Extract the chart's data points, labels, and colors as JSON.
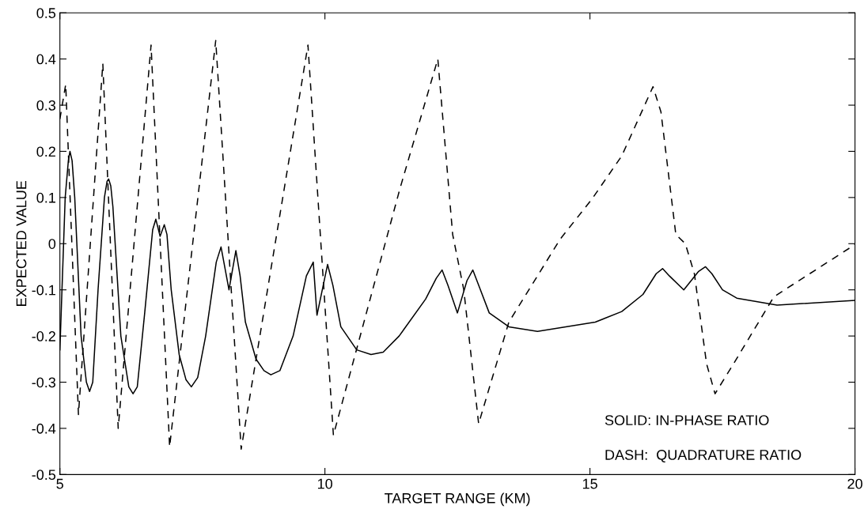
{
  "chart_data": {
    "type": "line",
    "xlabel": "TARGET RANGE (KM)",
    "ylabel": "EXPECTED VALUE",
    "xlim": [
      5,
      20
    ],
    "ylim": [
      -0.5,
      0.5
    ],
    "xticks": [
      5,
      10,
      15,
      20
    ],
    "yticks": [
      -0.5,
      -0.4,
      -0.3,
      -0.2,
      -0.1,
      0,
      0.1,
      0.2,
      0.3,
      0.4,
      0.5
    ],
    "grid": false,
    "legend": false,
    "annotations": [
      "SOLID: IN-PHASE RATIO",
      "DASH:  QUADRATURE RATIO"
    ],
    "series": [
      {
        "color": "#000000",
        "line_style": "solid",
        "x": [
          5,
          5.1,
          5.16,
          5.19,
          5.23,
          5.28,
          5.4,
          5.5,
          5.56,
          5.62,
          5.72,
          5.84,
          5.89,
          5.92,
          5.96,
          6.0,
          6.15,
          6.3,
          6.38,
          6.46,
          6.6,
          6.75,
          6.81,
          6.89,
          6.97,
          7.02,
          7.1,
          7.25,
          7.38,
          7.48,
          7.6,
          7.75,
          7.95,
          8.04,
          8.19,
          8.32,
          8.4,
          8.5,
          8.7,
          8.85,
          8.98,
          9.15,
          9.4,
          9.65,
          9.78,
          9.85,
          10.05,
          10.15,
          10.3,
          10.6,
          10.87,
          11.1,
          11.4,
          11.9,
          12.1,
          12.21,
          12.32,
          12.5,
          12.68,
          12.79,
          12.9,
          13.1,
          13.47,
          14.01,
          15.1,
          15.6,
          16.0,
          16.25,
          16.37,
          16.5,
          16.77,
          17.05,
          17.18,
          17.3,
          17.5,
          17.77,
          18.53,
          20
        ],
        "values": [
          -0.23,
          0.1,
          0.18,
          0.2,
          0.18,
          0.1,
          -0.2,
          -0.3,
          -0.32,
          -0.3,
          -0.1,
          0.1,
          0.135,
          0.14,
          0.125,
          0.08,
          -0.2,
          -0.31,
          -0.325,
          -0.31,
          -0.15,
          0.03,
          0.053,
          0.016,
          0.041,
          0.02,
          -0.1,
          -0.24,
          -0.295,
          -0.31,
          -0.29,
          -0.2,
          -0.04,
          -0.007,
          -0.1,
          -0.015,
          -0.07,
          -0.17,
          -0.25,
          -0.275,
          -0.284,
          -0.275,
          -0.2,
          -0.07,
          -0.04,
          -0.155,
          -0.045,
          -0.09,
          -0.18,
          -0.23,
          -0.24,
          -0.235,
          -0.2,
          -0.12,
          -0.075,
          -0.057,
          -0.09,
          -0.15,
          -0.08,
          -0.057,
          -0.09,
          -0.15,
          -0.18,
          -0.19,
          -0.17,
          -0.147,
          -0.11,
          -0.065,
          -0.054,
          -0.07,
          -0.1,
          -0.06,
          -0.05,
          -0.065,
          -0.1,
          -0.118,
          -0.133,
          -0.123
        ]
      },
      {
        "color": "#000000",
        "line_style": "dashed",
        "x": [
          5,
          5.11,
          5.35,
          5.81,
          6.1,
          6.72,
          7.07,
          7.94,
          8.42,
          9.68,
          10.16,
          11.41,
          12.13,
          12.41,
          12.62,
          12.9,
          13.47,
          14.44,
          15.04,
          15.6,
          16.19,
          16.34,
          16.62,
          16.8,
          16.97,
          17.2,
          17.36,
          17.71,
          18.47,
          20
        ],
        "values": [
          0.27,
          0.345,
          -0.37,
          0.39,
          -0.4,
          0.43,
          -0.44,
          0.44,
          -0.445,
          0.43,
          -0.415,
          0.117,
          0.4,
          0.02,
          -0.1,
          -0.39,
          -0.17,
          0.01,
          0.097,
          0.19,
          0.34,
          0.285,
          0.02,
          0.0,
          -0.065,
          -0.26,
          -0.325,
          -0.26,
          -0.115,
          -0.002
        ]
      }
    ]
  }
}
